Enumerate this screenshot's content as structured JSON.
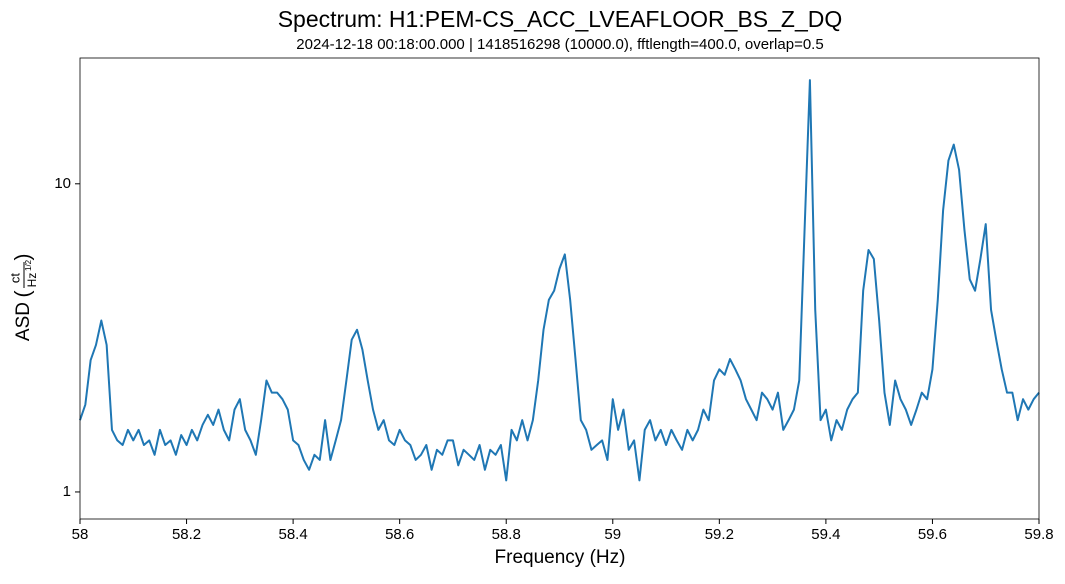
{
  "chart_data": {
    "type": "line",
    "title": "Spectrum: H1:PEM-CS_ACC_LVEAFLOOR_BS_Z_DQ",
    "subtitle": "2024-12-18 00:18:00.000 | 1418516298 (10000.0), fftlength=400.0, overlap=0.5",
    "x_label": "Frequency (Hz)",
    "y_label": {
      "name": "ASD",
      "numerator": "ct",
      "denominator": "Hz",
      "exponent": "1/2"
    },
    "y_log": true,
    "xlim": [
      58,
      59.8
    ],
    "ylim": [
      0.817,
      25.6
    ],
    "xticks": [
      58,
      58.2,
      58.4,
      58.6,
      58.8,
      59,
      59.2,
      59.4,
      59.6,
      59.8
    ],
    "yticks": [
      1,
      10
    ],
    "x": [
      58,
      58.01,
      58.02,
      58.03,
      58.04,
      58.05,
      58.06,
      58.07,
      58.08,
      58.09,
      58.1,
      58.11,
      58.12,
      58.13,
      58.14,
      58.15,
      58.16,
      58.17,
      58.18,
      58.19,
      58.2,
      58.21,
      58.22,
      58.23,
      58.24,
      58.25,
      58.26,
      58.27,
      58.28,
      58.29,
      58.3,
      58.31,
      58.32,
      58.33,
      58.34,
      58.35,
      58.36,
      58.37,
      58.38,
      58.39,
      58.4,
      58.41,
      58.42,
      58.43,
      58.44,
      58.45,
      58.46,
      58.47,
      58.48,
      58.49,
      58.5,
      58.51,
      58.52,
      58.53,
      58.54,
      58.55,
      58.56,
      58.57,
      58.58,
      58.59,
      58.6,
      58.61,
      58.62,
      58.63,
      58.64,
      58.65,
      58.66,
      58.67,
      58.68,
      58.69,
      58.7,
      58.71,
      58.72,
      58.73,
      58.74,
      58.75,
      58.76,
      58.77,
      58.78,
      58.79,
      58.8,
      58.81,
      58.82,
      58.83,
      58.84,
      58.85,
      58.86,
      58.87,
      58.88,
      58.89,
      58.9,
      58.91,
      58.92,
      58.93,
      58.94,
      58.95,
      58.96,
      58.97,
      58.98,
      58.99,
      59,
      59.01,
      59.02,
      59.03,
      59.04,
      59.05,
      59.06,
      59.07,
      59.08,
      59.09,
      59.1,
      59.11,
      59.12,
      59.13,
      59.14,
      59.15,
      59.16,
      59.17,
      59.18,
      59.19,
      59.2,
      59.21,
      59.22,
      59.23,
      59.24,
      59.25,
      59.26,
      59.27,
      59.28,
      59.29,
      59.3,
      59.31,
      59.32,
      59.33,
      59.34,
      59.35,
      59.36,
      59.37,
      59.38,
      59.39,
      59.4,
      59.41,
      59.42,
      59.43,
      59.44,
      59.45,
      59.46,
      59.47,
      59.48,
      59.49,
      59.5,
      59.51,
      59.52,
      59.53,
      59.54,
      59.55,
      59.56,
      59.57,
      59.58,
      59.59,
      59.6,
      59.61,
      59.62,
      59.63,
      59.64,
      59.65,
      59.66,
      59.67,
      59.68,
      59.69,
      59.7,
      59.71,
      59.72,
      59.73,
      59.74,
      59.75,
      59.76,
      59.77,
      59.78,
      59.79,
      59.8
    ],
    "series": [
      {
        "name": "ASD",
        "color": "#1f77b4",
        "values": [
          1.71,
          1.92,
          2.68,
          3.0,
          3.6,
          3.0,
          1.59,
          1.47,
          1.42,
          1.59,
          1.47,
          1.59,
          1.42,
          1.47,
          1.32,
          1.59,
          1.42,
          1.47,
          1.32,
          1.53,
          1.42,
          1.59,
          1.47,
          1.65,
          1.78,
          1.65,
          1.85,
          1.59,
          1.47,
          1.85,
          2.0,
          1.59,
          1.47,
          1.32,
          1.71,
          2.3,
          2.1,
          2.1,
          2.0,
          1.85,
          1.47,
          1.42,
          1.27,
          1.18,
          1.32,
          1.27,
          1.71,
          1.27,
          1.47,
          1.71,
          2.3,
          3.12,
          3.36,
          2.9,
          2.3,
          1.85,
          1.59,
          1.71,
          1.47,
          1.42,
          1.59,
          1.47,
          1.42,
          1.27,
          1.32,
          1.42,
          1.18,
          1.37,
          1.32,
          1.47,
          1.47,
          1.22,
          1.37,
          1.32,
          1.27,
          1.42,
          1.18,
          1.37,
          1.32,
          1.42,
          1.09,
          1.59,
          1.47,
          1.71,
          1.47,
          1.71,
          2.3,
          3.36,
          4.2,
          4.5,
          5.3,
          5.9,
          4.2,
          2.7,
          1.71,
          1.59,
          1.37,
          1.42,
          1.47,
          1.27,
          2.0,
          1.59,
          1.85,
          1.37,
          1.47,
          1.09,
          1.59,
          1.71,
          1.47,
          1.59,
          1.42,
          1.59,
          1.47,
          1.37,
          1.59,
          1.47,
          1.59,
          1.85,
          1.71,
          2.3,
          2.5,
          2.4,
          2.7,
          2.5,
          2.3,
          2.0,
          1.85,
          1.71,
          2.1,
          2.0,
          1.85,
          2.1,
          1.59,
          1.71,
          1.85,
          2.3,
          7.1,
          21.7,
          3.9,
          1.71,
          1.85,
          1.47,
          1.71,
          1.59,
          1.85,
          2.0,
          2.1,
          4.5,
          6.1,
          5.7,
          3.6,
          2.1,
          1.65,
          2.3,
          2.0,
          1.85,
          1.65,
          1.85,
          2.1,
          2.0,
          2.5,
          4.2,
          8.2,
          11.9,
          13.4,
          11.1,
          7.1,
          4.9,
          4.5,
          5.7,
          7.4,
          3.9,
          3.1,
          2.5,
          2.1,
          2.1,
          1.71,
          2.0,
          1.85,
          2.0,
          2.1
        ]
      }
    ]
  }
}
